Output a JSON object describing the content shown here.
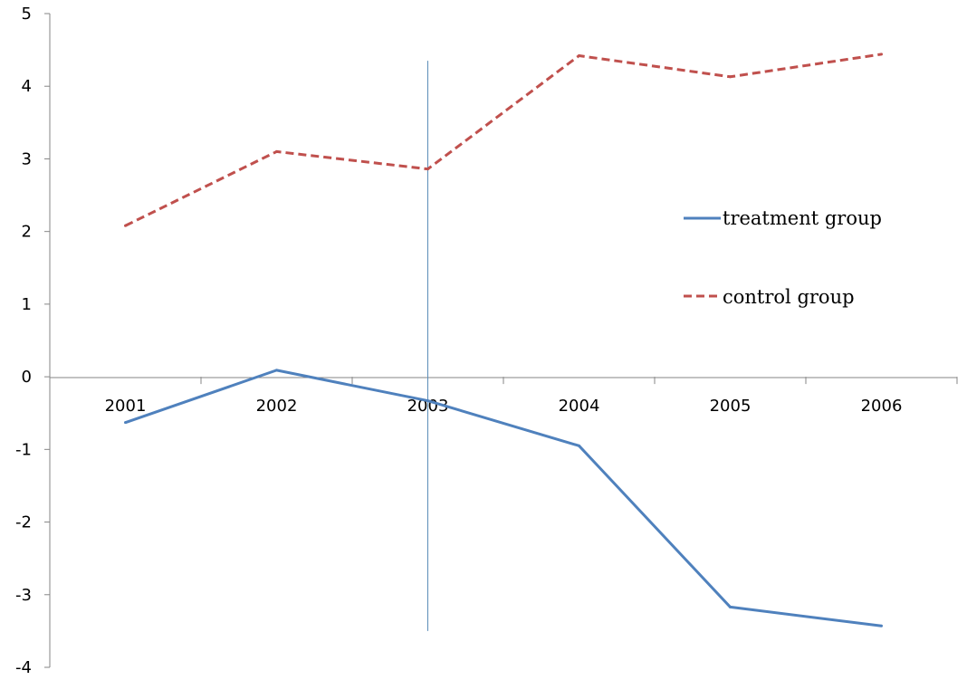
{
  "chart_data": {
    "type": "line",
    "title": "",
    "xlabel": "",
    "ylabel": "",
    "categories": [
      "2001",
      "2002",
      "2003",
      "2004",
      "2005",
      "2006"
    ],
    "ylim": [
      -4,
      5
    ],
    "yticks": [
      "5",
      "4",
      "3",
      "2",
      "1",
      "0",
      "-1",
      "-2",
      "-3",
      "-4"
    ],
    "grid": false,
    "legend_position": "right",
    "vertical_marker_at": "2003",
    "series": [
      {
        "name": "treatment group",
        "style": "solid",
        "color": "#4F81BD",
        "values": [
          -0.63,
          0.09,
          -0.33,
          -0.95,
          -3.17,
          -3.43
        ]
      },
      {
        "name": "control group",
        "style": "dashed",
        "color": "#C0504D",
        "values": [
          2.08,
          3.1,
          2.86,
          4.42,
          4.13,
          4.44
        ]
      }
    ]
  }
}
